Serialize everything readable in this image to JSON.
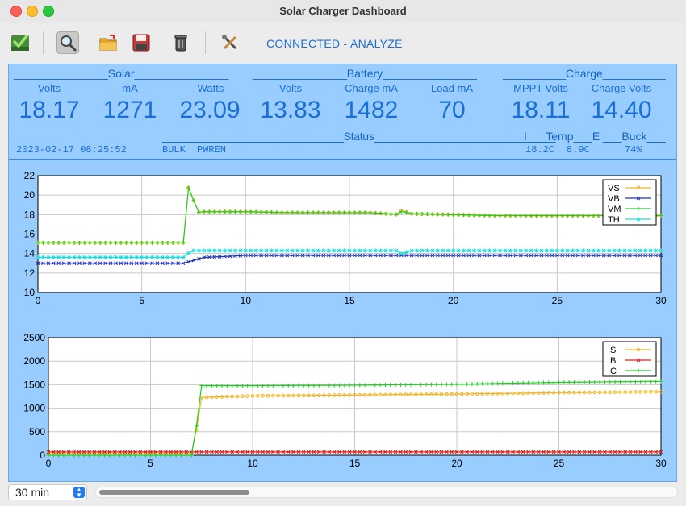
{
  "window": {
    "title": "Solar Charger Dashboard"
  },
  "toolbar": {
    "buttons": [
      {
        "name": "connect-button",
        "icon": "check-icon"
      },
      {
        "name": "analyze-button",
        "icon": "magnifier-icon"
      },
      {
        "name": "open-button",
        "icon": "folder-icon"
      },
      {
        "name": "save-button",
        "icon": "floppy-icon"
      },
      {
        "name": "delete-button",
        "icon": "trash-icon"
      },
      {
        "name": "settings-button",
        "icon": "tools-icon"
      }
    ],
    "status_text": "CONNECTED - ANALYZE"
  },
  "headers": {
    "solar": "_______________Solar_______________",
    "battery": "_______________Battery_______________",
    "charge": "__________Charge__________",
    "status": "______________________________Status______________________________",
    "temp": "I___Temp___E",
    "buck": "___Buck___"
  },
  "columns": {
    "solar_volts": {
      "label": "Volts",
      "value": "18.17"
    },
    "solar_ma": {
      "label": "mA",
      "value": "1271"
    },
    "solar_watts": {
      "label": "Watts",
      "value": "23.09"
    },
    "battery_volts": {
      "label": "Volts",
      "value": "13.83"
    },
    "charge_ma": {
      "label": "Charge mA",
      "value": "1482"
    },
    "load_ma": {
      "label": "Load mA",
      "value": "70"
    },
    "mppt_volts": {
      "label": "MPPT Volts",
      "value": "18.11"
    },
    "charge_volts": {
      "label": "Charge Volts",
      "value": "14.40"
    }
  },
  "status": {
    "timestamp": "2023-02-17 08:25:52",
    "mode": "BULK",
    "flag": "PWREN",
    "temp_internal": "18.2C",
    "temp_external": "8.9C",
    "buck": "74%"
  },
  "bottom": {
    "range": "30 min"
  },
  "chart_data": [
    {
      "type": "line",
      "xlim": [
        0,
        30
      ],
      "ylim": [
        10,
        22
      ],
      "xticks": [
        0,
        5,
        10,
        15,
        20,
        25,
        30
      ],
      "yticks": [
        10,
        12,
        14,
        16,
        18,
        20,
        22
      ],
      "grid": true,
      "legend": "top-right",
      "series": [
        {
          "name": "VS",
          "color": "#f0b429",
          "marker": "circle",
          "x": [
            0,
            7,
            7.3,
            7.6,
            8,
            10,
            12,
            14,
            16,
            17.4,
            17.6,
            17.8,
            20,
            22,
            24,
            26,
            28,
            30
          ],
          "y": [
            15.1,
            15.1,
            21.9,
            18.2,
            18.3,
            18.3,
            18.2,
            18.2,
            18.2,
            18.0,
            18.8,
            18.1,
            18.0,
            17.9,
            17.9,
            17.9,
            17.9,
            17.9
          ]
        },
        {
          "name": "VB",
          "color": "#2233bb",
          "marker": "x",
          "x": [
            0,
            7,
            7.5,
            8,
            9,
            10,
            15,
            20,
            25,
            30
          ],
          "y": [
            13.0,
            13.0,
            13.3,
            13.6,
            13.7,
            13.8,
            13.8,
            13.8,
            13.8,
            13.8
          ]
        },
        {
          "name": "VM",
          "color": "#22cc22",
          "marker": "plus",
          "x": [
            0,
            7,
            7.3,
            7.6,
            8,
            10,
            12,
            14,
            16,
            17.4,
            17.6,
            17.8,
            20,
            22,
            24,
            26,
            28,
            30
          ],
          "y": [
            15.1,
            15.1,
            21.9,
            18.2,
            18.3,
            18.3,
            18.2,
            18.2,
            18.2,
            18.0,
            18.6,
            18.1,
            18.0,
            17.9,
            17.9,
            17.9,
            17.9,
            17.9
          ]
        },
        {
          "name": "TH",
          "color": "#22dddd",
          "marker": "star",
          "x": [
            0,
            7,
            7.4,
            7.6,
            10,
            17.4,
            17.6,
            17.8,
            20,
            25,
            30
          ],
          "y": [
            13.6,
            13.6,
            14.3,
            14.3,
            14.3,
            14.3,
            13.7,
            14.3,
            14.3,
            14.3,
            14.3
          ]
        }
      ]
    },
    {
      "type": "line",
      "xlim": [
        0,
        30
      ],
      "ylim": [
        0,
        2500
      ],
      "xticks": [
        0,
        5,
        10,
        15,
        20,
        25,
        30
      ],
      "yticks": [
        0,
        500,
        1000,
        1500,
        2000,
        2500
      ],
      "grid": true,
      "legend": "top-right",
      "series": [
        {
          "name": "IS",
          "color": "#f0b429",
          "marker": "circle",
          "x": [
            0,
            7,
            7.2,
            7.5,
            10,
            15,
            20,
            25,
            30
          ],
          "y": [
            30,
            30,
            400,
            1230,
            1260,
            1280,
            1300,
            1330,
            1350
          ]
        },
        {
          "name": "IB",
          "color": "#dd2222",
          "marker": "x",
          "x": [
            0,
            30
          ],
          "y": [
            70,
            70
          ]
        },
        {
          "name": "IC",
          "color": "#22cc22",
          "marker": "plus",
          "x": [
            0,
            7,
            7.2,
            7.5,
            10,
            15,
            20,
            25,
            30
          ],
          "y": [
            0,
            0,
            450,
            1480,
            1480,
            1490,
            1510,
            1550,
            1570
          ]
        }
      ]
    }
  ]
}
